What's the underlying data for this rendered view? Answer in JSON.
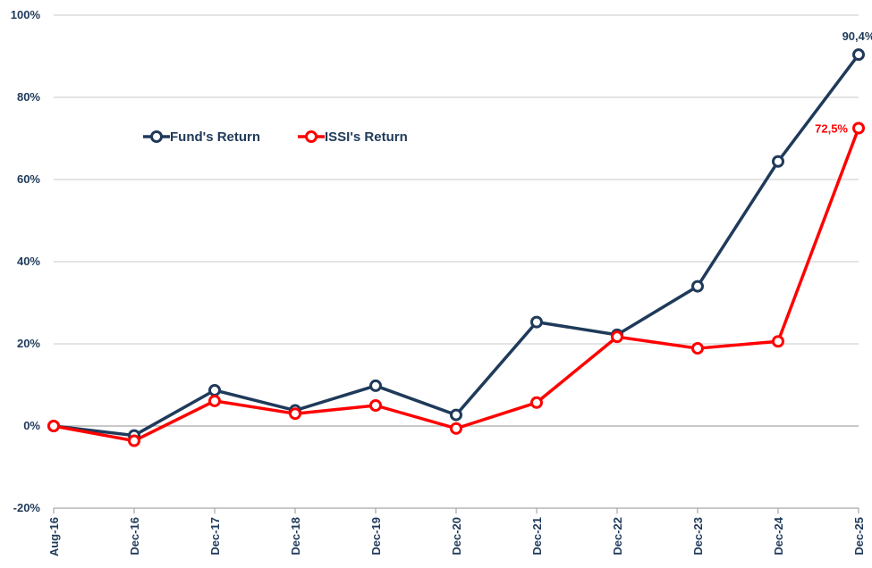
{
  "chart_data": {
    "type": "line",
    "categories": [
      "Aug-16",
      "Dec-16",
      "Dec-17",
      "Dec-18",
      "Dec-19",
      "Dec-20",
      "Dec-21",
      "Dec-22",
      "Dec-23",
      "Dec-24",
      "Dec-25"
    ],
    "y_ticks": [
      "-20%",
      "0%",
      "20%",
      "40%",
      "60%",
      "80%",
      "100%"
    ],
    "ylim": [
      -20,
      100
    ],
    "grid": "horizontal",
    "legend_position": "top-left",
    "series": [
      {
        "name": "Fund's Return",
        "color": "#1f3a5a",
        "values": [
          0,
          -2.3,
          8.7,
          3.8,
          9.8,
          2.7,
          25.3,
          22.2,
          34.0,
          64.4,
          90.4
        ]
      },
      {
        "name": "ISSI's Return",
        "color": "#ff0000",
        "values": [
          0,
          -3.6,
          6.1,
          3.0,
          5.0,
          -0.6,
          5.7,
          21.7,
          18.9,
          20.6,
          72.5
        ]
      }
    ],
    "annotations": [
      {
        "series": 0,
        "point": 10,
        "text": "90,4%",
        "color": "#1f3a5a"
      },
      {
        "series": 1,
        "point": 10,
        "text": "72,5%",
        "color": "#ff0000"
      }
    ]
  }
}
